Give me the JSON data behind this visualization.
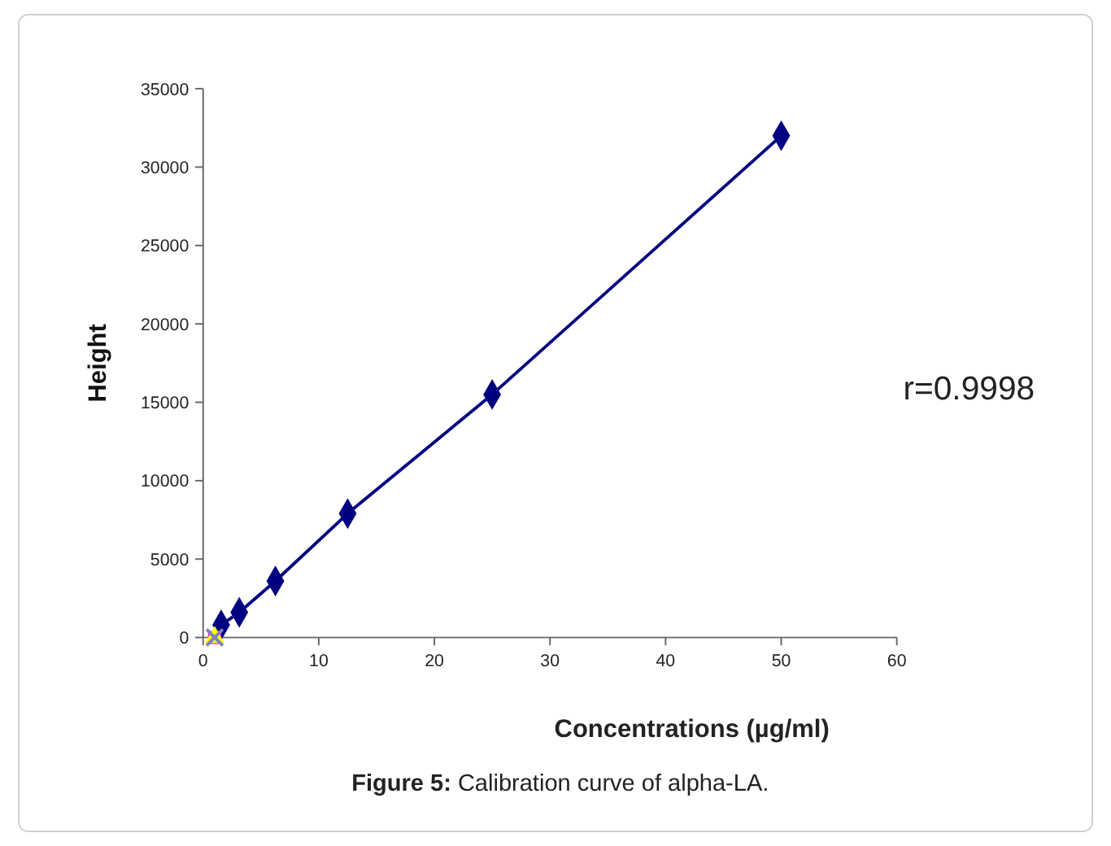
{
  "chart_data": {
    "type": "line",
    "title": "Figure 5: Calibration curve of alpha-LA.",
    "xlabel": "Concentrations (µg/ml)",
    "ylabel": "Height",
    "annotations": [
      "r=0.9998"
    ],
    "xlim": [
      0,
      60
    ],
    "xticks": [
      0,
      10,
      20,
      30,
      40,
      50,
      60
    ],
    "ylim": [
      0,
      35000
    ],
    "yticks": [
      0,
      5000,
      10000,
      15000,
      20000,
      25000,
      30000,
      35000
    ],
    "marker": "diamond",
    "line_style": "solid",
    "grid": false,
    "series": [
      {
        "color": "#000080",
        "x": [
          1.56,
          3.125,
          6.25,
          12.5,
          25,
          50
        ],
        "values": [
          800,
          1600,
          3600,
          7900,
          15500,
          32000
        ]
      },
      {
        "type": "scatter",
        "marker": "square",
        "color": "#ff00ff",
        "x": [
          1
        ],
        "values": [
          0
        ]
      },
      {
        "type": "scatter",
        "marker": "triangle",
        "color": "#ffff00",
        "x": [
          1
        ],
        "values": [
          0
        ]
      },
      {
        "type": "scatter",
        "marker": "cross",
        "color": "#8080c0",
        "x": [
          1
        ],
        "values": [
          0
        ]
      }
    ]
  }
}
